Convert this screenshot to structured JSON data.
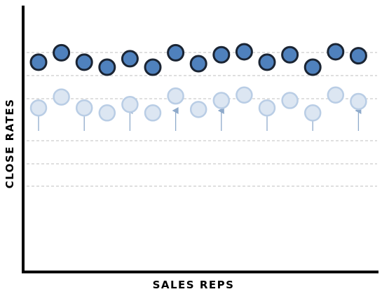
{
  "chart_data": {
    "type": "scatter",
    "title": "",
    "xlabel": "SALES REPS",
    "ylabel": "CLOSE RATES",
    "x": [
      1,
      2,
      3,
      4,
      5,
      6,
      7,
      8,
      9,
      10,
      11,
      12,
      13,
      14,
      15
    ],
    "series": [
      {
        "values": [
          0.72,
          0.91,
          0.72,
          0.62,
          0.79,
          0.62,
          0.91,
          0.69,
          0.87,
          0.93,
          0.72,
          0.87,
          0.62,
          0.93,
          0.85
        ]
      },
      {
        "values": [
          -0.2,
          0.02,
          -0.2,
          -0.3,
          -0.13,
          -0.3,
          0.04,
          -0.23,
          -0.05,
          0.06,
          -0.2,
          -0.05,
          -0.3,
          0.06,
          -0.07
        ]
      }
    ],
    "arrows_at_x": [
      1,
      3,
      5,
      7,
      9,
      11,
      13,
      15
    ],
    "grid": "dashed horizontal",
    "colors": {
      "improved_fill": "#4f81bd",
      "improved_stroke": "#1a2433",
      "original_fill": "#dce6f2",
      "original_stroke": "#b9cde5",
      "arrow": "#8eaacb",
      "grid": "#bfbfbf",
      "axis": "#000000"
    }
  }
}
